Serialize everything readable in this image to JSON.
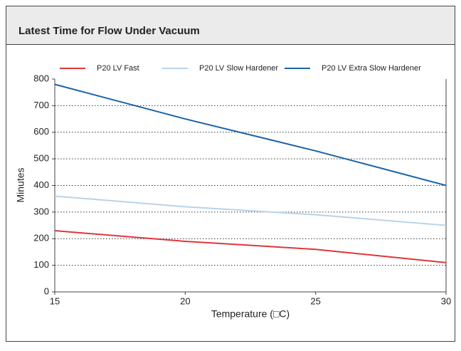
{
  "chart_data": {
    "type": "line",
    "title": "Latest Time for Flow Under Vacuum",
    "x_label": "Temperature (□C)",
    "y_label": "Minutes",
    "x": [
      15,
      20,
      25,
      30
    ],
    "series": [
      {
        "name": "P20 LV Fast",
        "color": "#e0363a",
        "values": [
          230,
          190,
          160,
          110
        ]
      },
      {
        "name": "P20 LV Slow Hardener",
        "color": "#b7d3e8",
        "values": [
          360,
          320,
          290,
          250
        ]
      },
      {
        "name": "P20 LV Extra Slow Hardener",
        "color": "#1a63a8",
        "values": [
          780,
          650,
          530,
          400
        ]
      }
    ],
    "xlim": [
      15,
      30
    ],
    "xticks": [
      15,
      20,
      25,
      30
    ],
    "ylim": [
      0,
      800
    ],
    "yticks": [
      0,
      100,
      200,
      300,
      400,
      500,
      600,
      700,
      800
    ],
    "grid": true,
    "legend": "top"
  }
}
